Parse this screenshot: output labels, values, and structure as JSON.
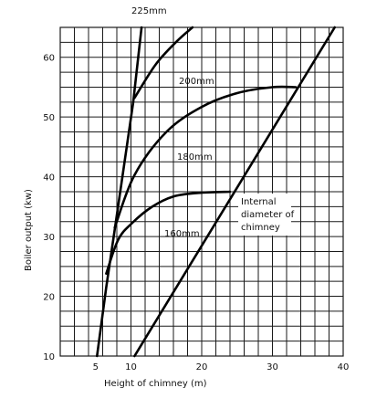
{
  "chart_data": {
    "type": "line",
    "xlabel": "Height of chimney (m)",
    "ylabel": "Boiler output (kw)",
    "xlim": [
      0,
      40
    ],
    "ylim": [
      10,
      65
    ],
    "x_ticks": [
      5,
      10,
      20,
      30,
      40
    ],
    "y_ticks": [
      10,
      20,
      30,
      40,
      50,
      60
    ],
    "x_grid_step": 2,
    "y_grid_step": 2.5,
    "grid": true,
    "annotation": [
      "Internal",
      "diameter of",
      "chimney"
    ],
    "series": [
      {
        "name": "225mm",
        "x": [
          10.5,
          13.5,
          16.5,
          18.7
        ],
        "y": [
          53.2,
          58.8,
          62.7,
          65
        ]
      },
      {
        "name": "200mm",
        "x": [
          7.7,
          10.5,
          15,
          20,
          25,
          30,
          33.3
        ],
        "y": [
          31.5,
          40.3,
          47.5,
          51.7,
          54,
          55,
          55
        ]
      },
      {
        "name": "180mm",
        "x": [
          6.5,
          8.2,
          10.2,
          13,
          16,
          19.5,
          24
        ],
        "y": [
          23.8,
          29.5,
          32.3,
          35,
          36.7,
          37.3,
          37.5
        ]
      },
      {
        "name": "160mm",
        "x": [
          10.5,
          38.8
        ],
        "y": [
          10,
          65
        ]
      },
      {
        "name": "",
        "x": [
          5.2,
          6.5,
          7.8,
          10.3,
          11.5
        ],
        "y": [
          10,
          21.5,
          32,
          52.3,
          65
        ]
      }
    ],
    "series_labels": [
      "225mm",
      "200mm",
      "180mm",
      "160mm"
    ]
  }
}
